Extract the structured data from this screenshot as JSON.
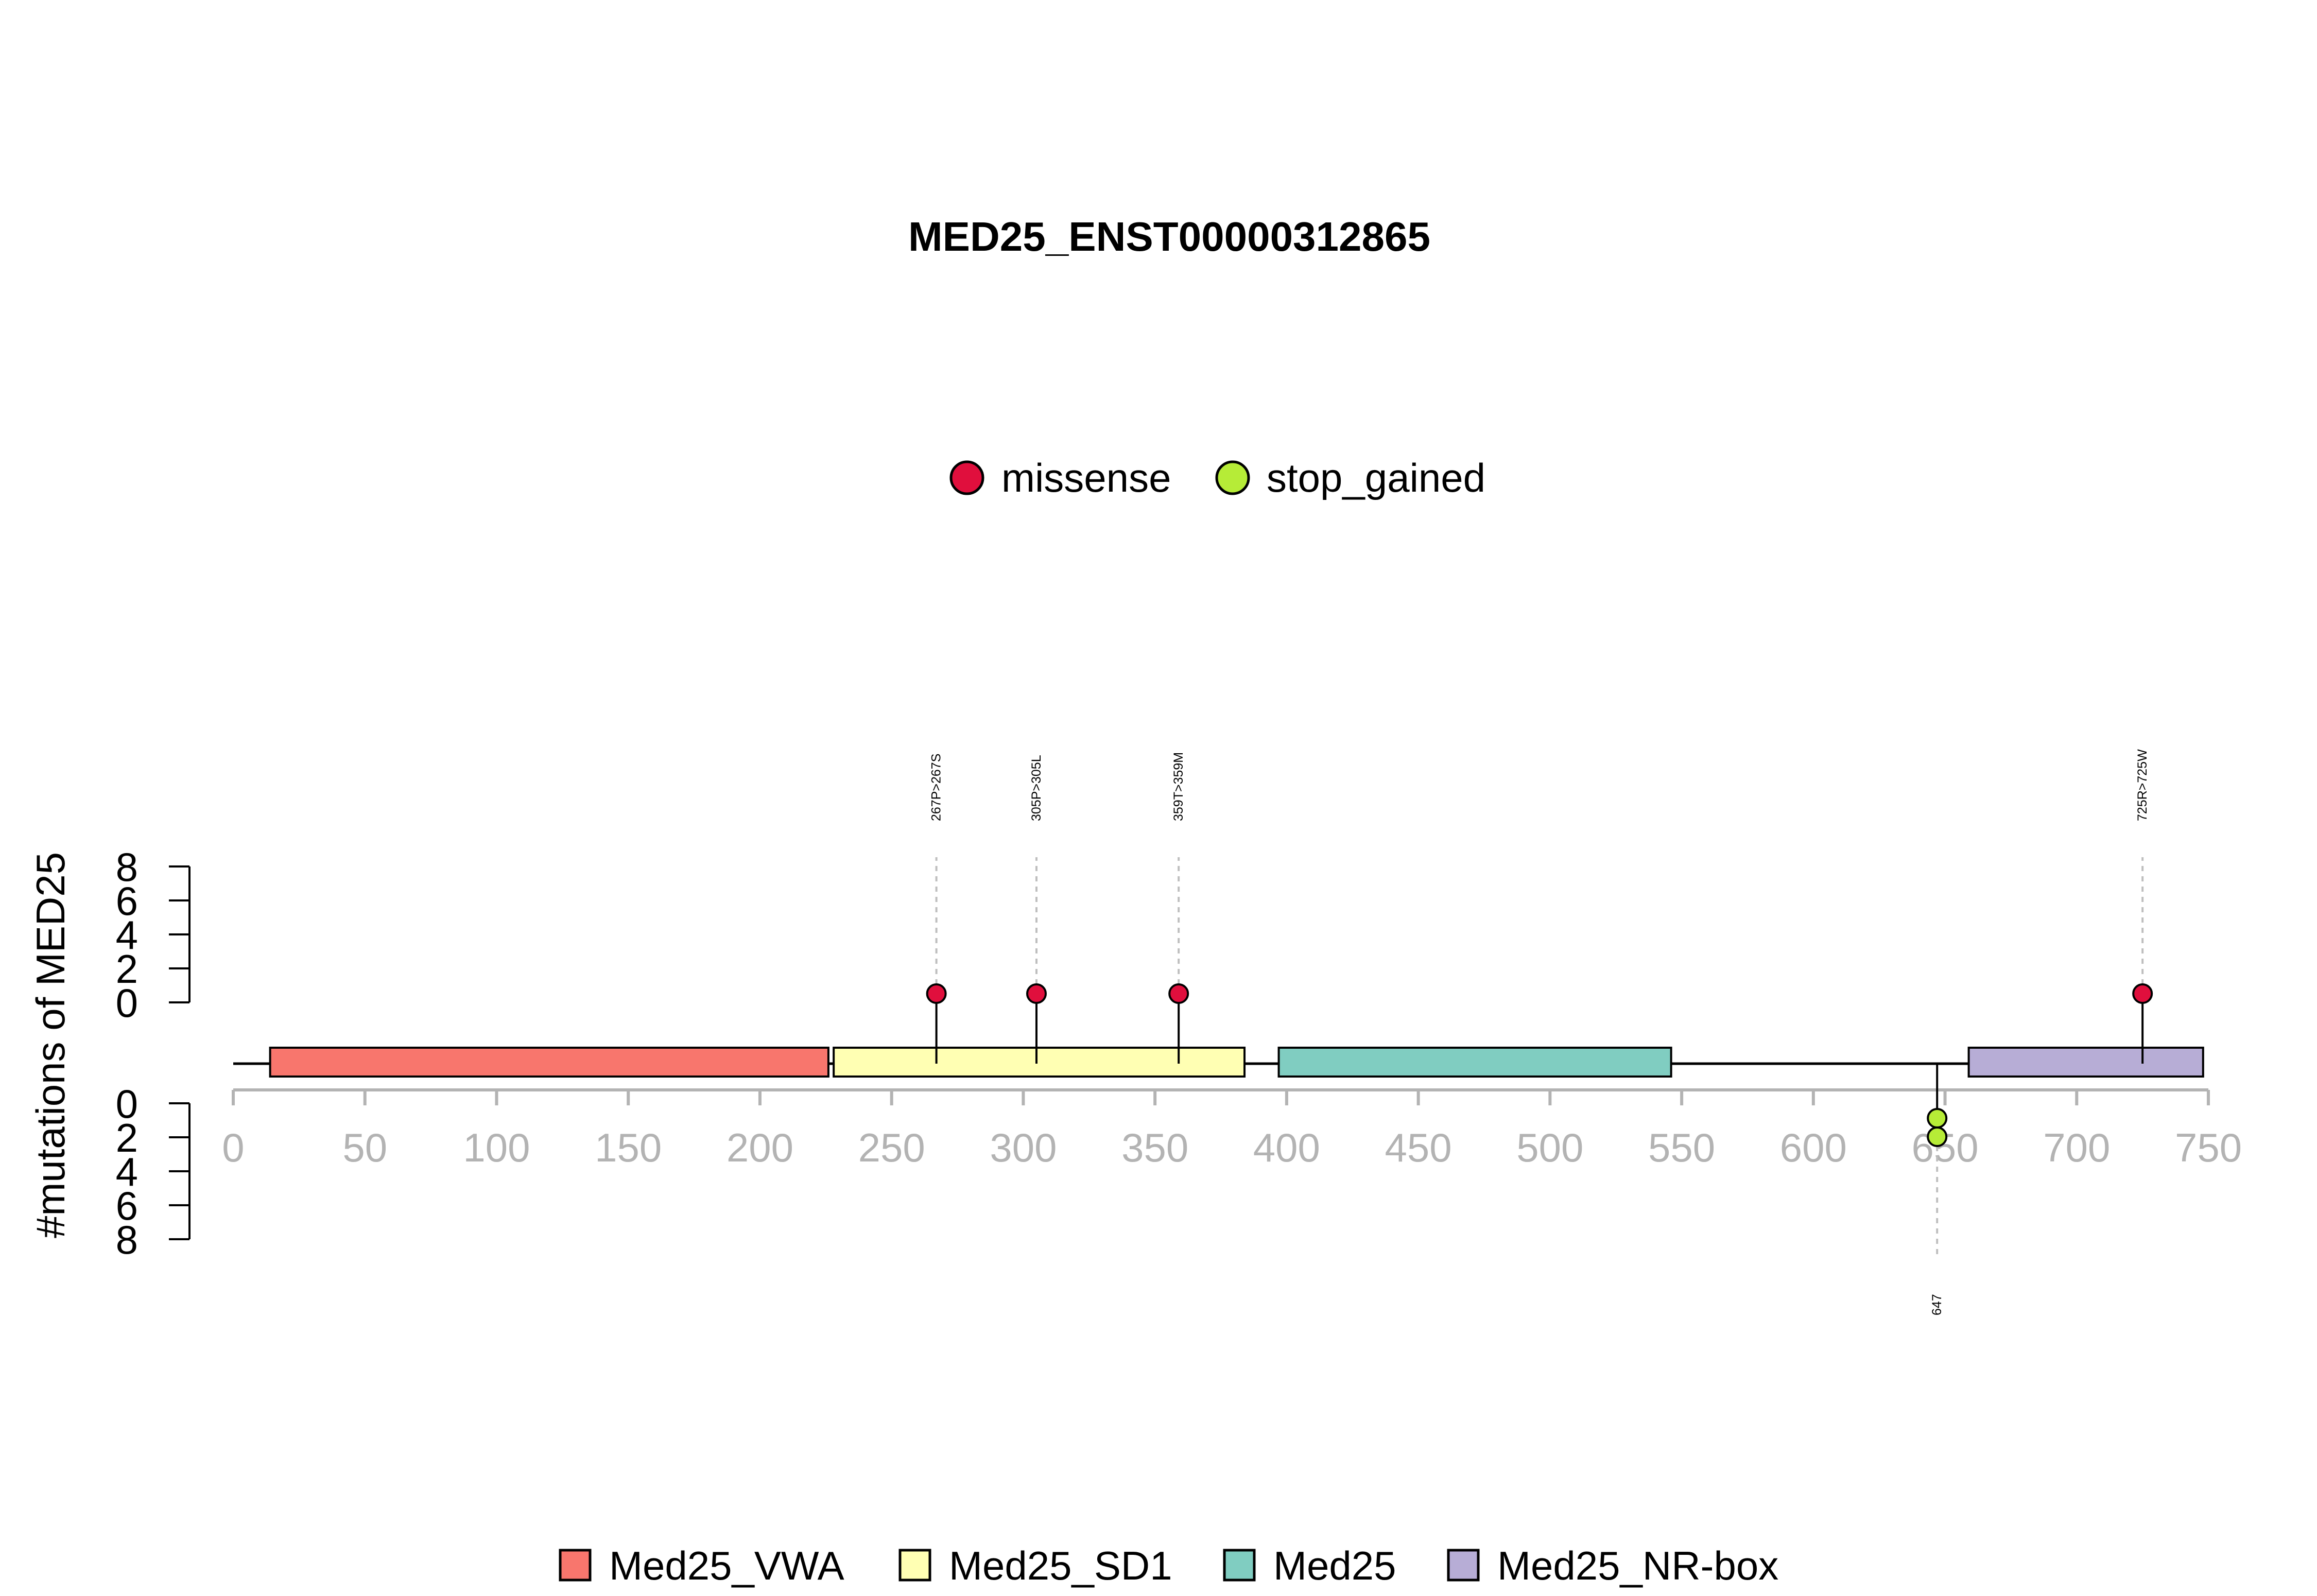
{
  "chart_data": {
    "type": "lollipop",
    "title": "MED25_ENST00000312865",
    "ylabel": "#mutations of MED25",
    "x_ticks": [
      0,
      50,
      100,
      150,
      200,
      250,
      300,
      350,
      400,
      450,
      500,
      550,
      600,
      650,
      700,
      750
    ],
    "x_range": [
      0,
      750
    ],
    "protein_length": 747,
    "y_upper_ticks": [
      "0",
      "2",
      "4",
      "6",
      "8"
    ],
    "y_lower_ticks": [
      "0",
      "2",
      "4",
      "6",
      "8"
    ],
    "legend_top": [
      {
        "label": "missense",
        "color": "#E00F3D"
      },
      {
        "label": "stop_gained",
        "color": "#B6EC37"
      }
    ],
    "legend_placement_top": "top-center",
    "domains": [
      {
        "name": "Med25_VWA",
        "start": 14,
        "end": 226,
        "color": "#F8766D"
      },
      {
        "name": "Med25_SD1",
        "start": 228,
        "end": 384,
        "color": "#FFFFB3"
      },
      {
        "name": "Med25",
        "start": 397,
        "end": 546,
        "color": "#80CDC1"
      },
      {
        "name": "Med25_NR-box",
        "start": 659,
        "end": 748,
        "color": "#B7ADD6"
      }
    ],
    "legend_bottom_placement": "bottom-center",
    "mutations": [
      {
        "position": 267,
        "label": "267P>267S",
        "type": "missense",
        "count": 1,
        "side": "top"
      },
      {
        "position": 305,
        "label": "305P>305L",
        "type": "missense",
        "count": 1,
        "side": "top"
      },
      {
        "position": 359,
        "label": "359T>359M",
        "type": "missense",
        "count": 1,
        "side": "top"
      },
      {
        "position": 725,
        "label": "725R>725W",
        "type": "missense",
        "count": 1,
        "side": "top"
      },
      {
        "position": 647,
        "label": "647",
        "type": "stop_gained",
        "count": 2,
        "side": "bottom"
      }
    ],
    "grid": false,
    "colors": {
      "missense": "#E00F3D",
      "stop_gained": "#B6EC37",
      "axis_gray": "#B3B3B3",
      "dashed_gray": "#BEBEBE"
    }
  }
}
